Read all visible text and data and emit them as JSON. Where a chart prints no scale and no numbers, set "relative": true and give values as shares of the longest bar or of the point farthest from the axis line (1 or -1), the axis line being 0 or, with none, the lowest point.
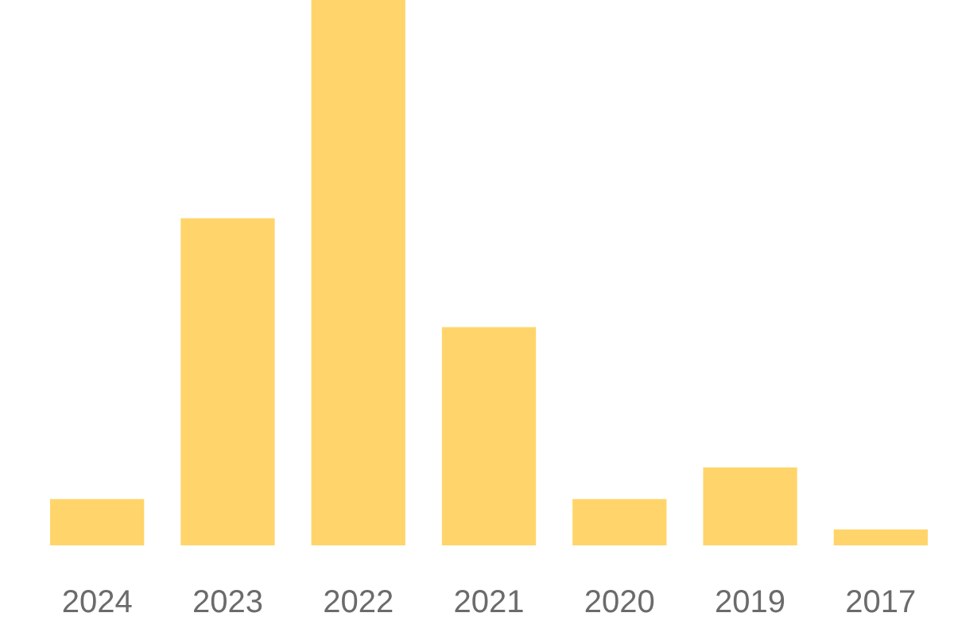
{
  "chart_data": {
    "type": "bar",
    "relative": true,
    "categories": [
      "2024",
      "2023",
      "2022",
      "2021",
      "2020",
      "2019",
      "2017"
    ],
    "values": [
      0.085,
      0.6,
      1,
      0.4,
      0.085,
      0.143,
      0.029
    ],
    "color": "#ffd56b"
  }
}
